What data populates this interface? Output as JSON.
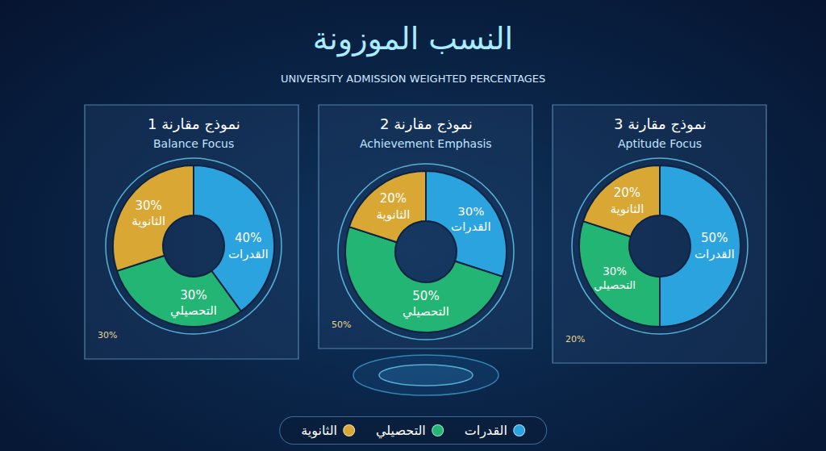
{
  "title": "النسب الموزونة",
  "subtitle": "UNIVERSITY ADMISSION WEIGHTED PERCENTAGES",
  "legend": "bottom",
  "chart_data": [
    {
      "type": "pie",
      "title": "نموذج مقارنة 1",
      "subtitle": "Balance Focus",
      "categories": [
        "القدرات",
        "التحصيلي",
        "الثانوية"
      ],
      "values": [
        40,
        30,
        30
      ],
      "value_labels": [
        "40%",
        "30%",
        "30%"
      ],
      "colors": [
        "#2aa3de",
        "#22b573",
        "#d9a733"
      ],
      "data_labels": true,
      "note": "30%"
    },
    {
      "type": "pie",
      "title": "نموذج مقارنة 2",
      "subtitle": "Achievement Emphasis",
      "categories": [
        "القدرات",
        "التحصيلي",
        "الثانوية"
      ],
      "values": [
        30,
        50,
        20
      ],
      "value_labels": [
        "30%",
        "50%",
        "20%"
      ],
      "colors": [
        "#2aa3de",
        "#22b573",
        "#d9a733"
      ],
      "data_labels": true,
      "note": "50%"
    },
    {
      "type": "pie",
      "title": "نموذج مقارنة 3",
      "subtitle": "Aptitude Focus",
      "categories": [
        "القدرات",
        "التحصيلي",
        "الثانوية"
      ],
      "values": [
        50,
        30,
        20
      ],
      "value_labels": [
        "50%",
        "30%",
        "20%"
      ],
      "colors": [
        "#2aa3de",
        "#22b573",
        "#d9a733"
      ],
      "data_labels": true,
      "note": "20%"
    }
  ]
}
